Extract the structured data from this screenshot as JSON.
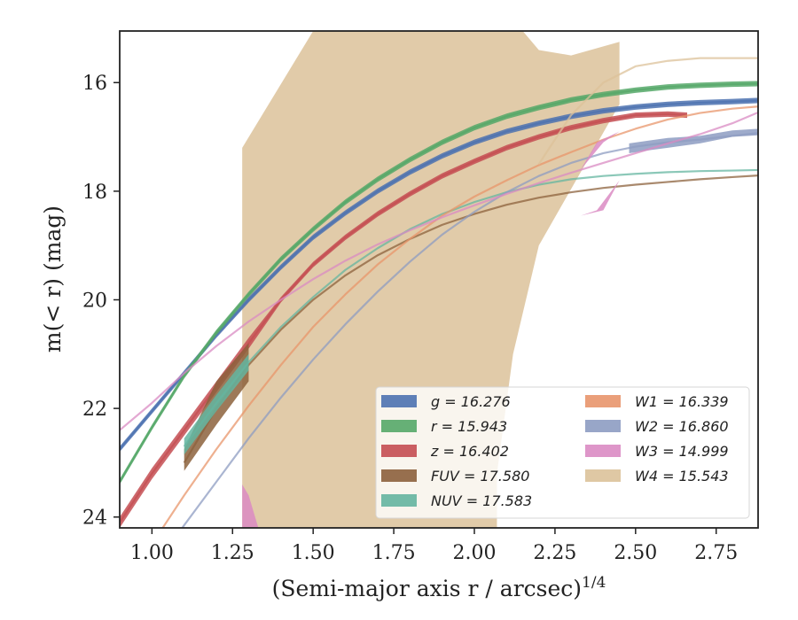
{
  "chart_data": {
    "type": "line",
    "title": "",
    "xlabel": "(Semi-major axis r / arcsec)",
    "xlabel_exponent": "1/4",
    "ylabel": "m(< r) (mag)",
    "xlim": [
      0.9,
      2.88
    ],
    "ylim": [
      24.2,
      15.05
    ],
    "y_inverted": true,
    "x_ticks": [
      1.0,
      1.25,
      1.5,
      1.75,
      2.0,
      2.25,
      2.5,
      2.75
    ],
    "x_tick_labels": [
      "1.00",
      "1.25",
      "1.50",
      "1.75",
      "2.00",
      "2.25",
      "2.50",
      "2.75"
    ],
    "y_ticks": [
      16,
      18,
      20,
      22,
      24
    ],
    "y_tick_labels": [
      "16",
      "18",
      "20",
      "22",
      "24"
    ],
    "grid": false,
    "legend_position": "lower-right",
    "legend_columns": 2,
    "series": [
      {
        "name": "g = 16.276",
        "color": "#4c72b0",
        "x": [
          0.9,
          1.0,
          1.1,
          1.2,
          1.3,
          1.4,
          1.5,
          1.6,
          1.7,
          1.8,
          1.9,
          2.0,
          2.1,
          2.2,
          2.3,
          2.4,
          2.5,
          2.6,
          2.7,
          2.8,
          2.88
        ],
        "y": [
          22.75,
          22.05,
          21.35,
          20.65,
          20.0,
          19.4,
          18.85,
          18.4,
          18.0,
          17.65,
          17.35,
          17.1,
          16.9,
          16.75,
          16.62,
          16.52,
          16.45,
          16.4,
          16.37,
          16.35,
          16.33
        ],
        "band_x": [
          0.9,
          1.0,
          1.1,
          1.2,
          1.3,
          1.4,
          1.5,
          1.6,
          1.7,
          1.8,
          1.9,
          2.0,
          2.1,
          2.2,
          2.3,
          2.4,
          2.5,
          2.6,
          2.7,
          2.8,
          2.88
        ],
        "band_upper": [
          22.7,
          22.0,
          21.3,
          20.6,
          19.95,
          19.35,
          18.8,
          18.35,
          17.95,
          17.6,
          17.3,
          17.05,
          16.85,
          16.7,
          16.57,
          16.47,
          16.4,
          16.35,
          16.32,
          16.3,
          16.28
        ],
        "band_lower": [
          22.8,
          22.1,
          21.4,
          20.7,
          20.05,
          19.45,
          18.9,
          18.45,
          18.05,
          17.7,
          17.4,
          17.15,
          16.95,
          16.8,
          16.67,
          16.57,
          16.5,
          16.45,
          16.42,
          16.4,
          16.38
        ]
      },
      {
        "name": "r = 15.943",
        "color": "#55a868",
        "x": [
          0.9,
          1.0,
          1.1,
          1.2,
          1.3,
          1.4,
          1.5,
          1.6,
          1.7,
          1.8,
          1.9,
          2.0,
          2.1,
          2.2,
          2.3,
          2.4,
          2.5,
          2.6,
          2.7,
          2.8,
          2.88
        ],
        "y": [
          23.35,
          22.35,
          21.4,
          20.6,
          19.9,
          19.25,
          18.7,
          18.2,
          17.78,
          17.42,
          17.1,
          16.83,
          16.62,
          16.46,
          16.32,
          16.22,
          16.14,
          16.08,
          16.05,
          16.03,
          16.02
        ],
        "band_x": [
          0.9,
          1.0,
          1.1,
          1.2,
          1.3,
          1.4,
          1.5,
          1.6,
          1.7,
          1.8,
          1.9,
          2.0,
          2.1,
          2.2,
          2.3,
          2.4,
          2.5,
          2.6,
          2.7,
          2.8,
          2.88
        ],
        "band_upper": [
          23.3,
          22.3,
          21.35,
          20.55,
          19.85,
          19.2,
          18.65,
          18.15,
          17.73,
          17.37,
          17.05,
          16.78,
          16.57,
          16.41,
          16.27,
          16.17,
          16.09,
          16.03,
          16.0,
          15.98,
          15.97
        ],
        "band_lower": [
          23.4,
          22.4,
          21.45,
          20.65,
          19.95,
          19.3,
          18.75,
          18.25,
          17.83,
          17.47,
          17.15,
          16.88,
          16.67,
          16.51,
          16.37,
          16.27,
          16.19,
          16.13,
          16.1,
          16.08,
          16.07
        ]
      },
      {
        "name": "z = 16.402",
        "color": "#c44e52",
        "x": [
          0.9,
          1.0,
          1.1,
          1.2,
          1.3,
          1.4,
          1.5,
          1.6,
          1.7,
          1.8,
          1.9,
          2.0,
          2.1,
          2.2,
          2.3,
          2.4,
          2.5,
          2.6,
          2.66
        ],
        "y": [
          24.1,
          23.2,
          22.4,
          21.6,
          20.8,
          20.0,
          19.35,
          18.85,
          18.42,
          18.05,
          17.72,
          17.45,
          17.2,
          17.0,
          16.83,
          16.7,
          16.6,
          16.58,
          16.6
        ],
        "band_x": [
          0.9,
          1.0,
          1.1,
          1.2,
          1.3,
          1.4,
          1.5,
          1.6,
          1.7,
          1.8,
          1.9,
          2.0,
          2.1,
          2.2,
          2.3,
          2.4,
          2.5,
          2.6,
          2.66
        ],
        "band_upper": [
          24.0,
          23.1,
          22.3,
          21.5,
          20.7,
          19.95,
          19.3,
          18.8,
          18.37,
          18.0,
          17.67,
          17.4,
          17.15,
          16.95,
          16.78,
          16.65,
          16.55,
          16.53,
          16.55
        ],
        "band_lower": [
          24.2,
          23.3,
          22.5,
          21.7,
          20.9,
          20.05,
          19.4,
          18.9,
          18.47,
          18.1,
          17.77,
          17.5,
          17.25,
          17.05,
          16.88,
          16.75,
          16.65,
          16.63,
          16.65
        ]
      },
      {
        "name": "FUV = 17.580",
        "color": "#8c613c",
        "x": [
          1.1,
          1.2,
          1.3,
          1.4,
          1.5,
          1.6,
          1.7,
          1.8,
          1.9,
          2.0,
          2.1,
          2.2,
          2.3,
          2.4,
          2.5,
          2.6,
          2.7,
          2.8,
          2.88
        ],
        "y": [
          23.0,
          22.0,
          21.2,
          20.55,
          20.0,
          19.55,
          19.18,
          18.88,
          18.62,
          18.42,
          18.25,
          18.12,
          18.02,
          17.94,
          17.88,
          17.83,
          17.78,
          17.74,
          17.71
        ],
        "band_x": [
          1.1,
          1.2,
          1.3
        ],
        "band_upper": [
          22.75,
          21.5,
          20.8
        ],
        "band_lower": [
          23.15,
          22.3,
          21.5
        ]
      },
      {
        "name": "NUV = 17.583",
        "color": "#64b5a0",
        "x": [
          1.1,
          1.2,
          1.3,
          1.4,
          1.5,
          1.6,
          1.7,
          1.8,
          1.9,
          2.0,
          2.1,
          2.2,
          2.3,
          2.4,
          2.5,
          2.6,
          2.7,
          2.8,
          2.88
        ],
        "y": [
          22.7,
          21.9,
          21.15,
          20.5,
          19.95,
          19.45,
          19.05,
          18.7,
          18.42,
          18.2,
          18.02,
          17.88,
          17.78,
          17.72,
          17.68,
          17.65,
          17.63,
          17.62,
          17.61
        ],
        "band_x": [
          1.1,
          1.2,
          1.3
        ],
        "band_upper": [
          22.55,
          21.75,
          21.0
        ],
        "band_lower": [
          22.85,
          22.05,
          21.3
        ]
      },
      {
        "name": "W1 = 16.339",
        "color": "#e8956b",
        "x": [
          0.9,
          1.0,
          1.1,
          1.2,
          1.3,
          1.4,
          1.5,
          1.6,
          1.7,
          1.8,
          1.9,
          2.0,
          2.1,
          2.2,
          2.3,
          2.4,
          2.5,
          2.6,
          2.7,
          2.8,
          2.88
        ],
        "y": [
          25.5,
          24.5,
          23.6,
          22.75,
          21.95,
          21.2,
          20.5,
          19.9,
          19.35,
          18.88,
          18.45,
          18.1,
          17.8,
          17.52,
          17.28,
          17.05,
          16.85,
          16.68,
          16.56,
          16.48,
          16.44
        ],
        "band_x": [],
        "band_upper": [],
        "band_lower": []
      },
      {
        "name": "W2 = 16.860",
        "color": "#8d9cc2",
        "x": [
          0.9,
          1.0,
          1.1,
          1.2,
          1.3,
          1.4,
          1.5,
          1.6,
          1.7,
          1.8,
          1.9,
          2.0,
          2.1,
          2.2,
          2.3,
          2.4,
          2.5,
          2.6,
          2.7,
          2.8,
          2.88
        ],
        "y": [
          25.9,
          25.0,
          24.15,
          23.35,
          22.55,
          21.8,
          21.1,
          20.45,
          19.85,
          19.3,
          18.8,
          18.38,
          18.02,
          17.72,
          17.48,
          17.3,
          17.18,
          17.1,
          17.05,
          16.98,
          16.93
        ],
        "band_x": [
          2.48,
          2.55,
          2.6,
          2.7,
          2.8,
          2.88
        ],
        "band_upper": [
          17.12,
          17.06,
          17.02,
          16.98,
          16.88,
          16.85
        ],
        "band_lower": [
          17.3,
          17.24,
          17.2,
          17.12,
          17.0,
          16.97
        ]
      },
      {
        "name": "W3 = 14.999",
        "color": "#da8bc3",
        "x": [
          0.9,
          1.0,
          1.1,
          1.2,
          1.3,
          1.4,
          1.5,
          1.6,
          1.7,
          1.8,
          1.9,
          2.0,
          2.1,
          2.2,
          2.3,
          2.4,
          2.5,
          2.6,
          2.7,
          2.8,
          2.88
        ],
        "y": [
          22.4,
          21.9,
          21.35,
          20.85,
          20.4,
          20.0,
          19.62,
          19.28,
          18.98,
          18.72,
          18.48,
          18.26,
          18.05,
          17.85,
          17.66,
          17.48,
          17.3,
          17.12,
          16.95,
          16.75,
          16.55
        ],
        "band_x": [
          2.28,
          2.33,
          2.4,
          2.45,
          2.53,
          2.53,
          2.45,
          2.38,
          2.33,
          2.28
        ],
        "band_upper": [
          18.2,
          17.6,
          17.1,
          16.9,
          16.6,
          16.6,
          16.9,
          17.1,
          17.6,
          18.2
        ],
        "band_lower": [
          18.4,
          18.45,
          18.35,
          17.8,
          17.5,
          17.5,
          17.8,
          18.35,
          18.45,
          18.4
        ],
        "band2_x": [
          1.28,
          1.3,
          1.33
        ],
        "band2_upper": [
          23.4,
          23.6,
          24.2
        ],
        "band2_lower": [
          24.2,
          24.2,
          24.2
        ]
      },
      {
        "name": "W4 = 15.543",
        "color": "#dcc29a",
        "x": [
          2.2,
          2.3,
          2.4,
          2.5,
          2.6,
          2.7,
          2.8,
          2.88
        ],
        "y": [
          17.5,
          16.6,
          16.0,
          15.7,
          15.6,
          15.55,
          15.55,
          15.55
        ],
        "band_x": [],
        "band_upper": [],
        "band_lower": []
      }
    ],
    "w4_envelope": {
      "x": [
        1.28,
        1.5,
        1.75,
        2.15,
        2.2,
        2.3,
        2.45,
        2.45,
        2.2,
        2.12,
        2.07,
        2.07,
        1.7,
        1.4,
        1.28
      ],
      "y": [
        17.2,
        15.05,
        15.05,
        15.05,
        15.4,
        15.5,
        15.25,
        16.4,
        19.0,
        21.0,
        23.2,
        24.2,
        24.2,
        24.2,
        24.2
      ]
    },
    "legend_entries": [
      {
        "base": "g",
        "value": "16.276",
        "color": "#4c72b0"
      },
      {
        "base": "r",
        "value": "15.943",
        "color": "#55a868"
      },
      {
        "base": "z",
        "value": "16.402",
        "color": "#c44e52"
      },
      {
        "base": "FUV",
        "value": "17.580",
        "color": "#8c613c"
      },
      {
        "base": "NUV",
        "value": "17.583",
        "color": "#64b5a0"
      },
      {
        "base": "W1",
        "value": "16.339",
        "color": "#e8956b"
      },
      {
        "base": "W2",
        "value": "16.860",
        "color": "#8d9cc2"
      },
      {
        "base": "W3",
        "value": "14.999",
        "color": "#da8bc3"
      },
      {
        "base": "W4",
        "value": "15.543",
        "color": "#dcc29a"
      }
    ]
  }
}
